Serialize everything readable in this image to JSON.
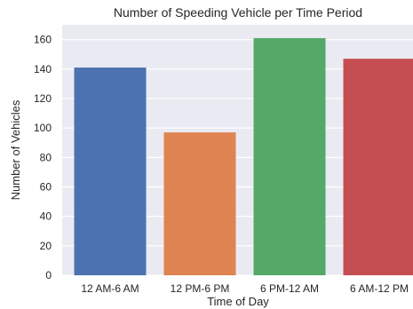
{
  "chart_data": {
    "type": "bar",
    "title": "Number of Speeding Vehicle per Time Period",
    "xlabel": "Time of Day",
    "ylabel": "Number of Vehicles",
    "categories": [
      "12 AM-6 AM",
      "12 PM-6 PM",
      "6 PM-12 AM",
      "6 AM-12 PM"
    ],
    "values": [
      141,
      97,
      161,
      147
    ],
    "colors": [
      "#4c72b0",
      "#dd8452",
      "#55a868",
      "#c44e52"
    ],
    "ylim": [
      0,
      170
    ],
    "yticks": [
      0,
      20,
      40,
      60,
      80,
      100,
      120,
      140,
      160
    ],
    "grid": true,
    "plot_background": "#eaeaf2"
  }
}
